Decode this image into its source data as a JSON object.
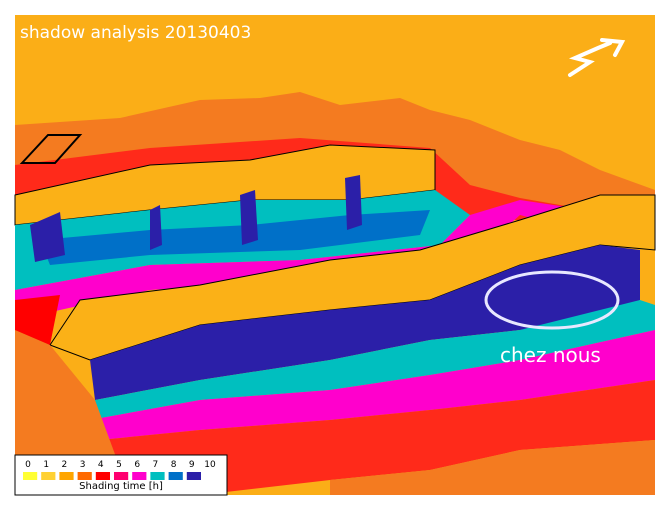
{
  "title": "shadow analysis 20130403",
  "annotation": "chez nous",
  "legend": {
    "ticks": [
      0,
      1,
      2,
      3,
      4,
      5,
      6,
      7,
      8,
      9,
      10
    ],
    "colors": [
      "#ffff33",
      "#ffd133",
      "#ffa500",
      "#ff6a00",
      "#ff0000",
      "#ff0070",
      "#ff00cc",
      "#00bfbf",
      "#0070c8",
      "#2b1fa8"
    ],
    "label": "Shading time [h]"
  }
}
